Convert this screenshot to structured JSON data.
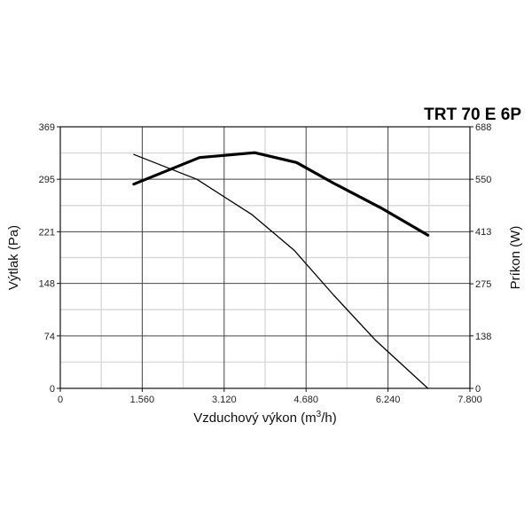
{
  "chart_data": {
    "type": "line",
    "title": "TRT 70 E 6P",
    "xlabel": "Vzduchový výkon (m³/h)",
    "xlabel_parts": {
      "pre": "Vzduchový výkon (m",
      "sup": "3",
      "post": "/h)"
    },
    "ylabel_left": "Výtlak (Pa)",
    "ylabel_right": "Príkon (W)",
    "xlim": [
      0,
      7800
    ],
    "ylim_left": [
      0,
      369
    ],
    "ylim_right": [
      0,
      688
    ],
    "x_ticks": [
      0,
      1560,
      3120,
      4680,
      6240,
      7800
    ],
    "x_tick_labels": [
      "0",
      "1.560",
      "3.120",
      "4.680",
      "6.240",
      "7.800"
    ],
    "y_left_ticks": [
      0,
      74,
      148,
      221,
      295,
      369
    ],
    "y_left_tick_labels": [
      "0",
      "74",
      "148",
      "221",
      "295",
      "369"
    ],
    "y_right_ticks": [
      0,
      138,
      275,
      413,
      550,
      688
    ],
    "y_right_tick_labels": [
      "0",
      "138",
      "275",
      "413",
      "550",
      "688"
    ],
    "grid": true,
    "series": [
      {
        "axis": "left",
        "style": "thin",
        "x": [
          1400,
          2600,
          3650,
          4450,
          5200,
          6000,
          7000
        ],
        "y": [
          330,
          295,
          245,
          195,
          132,
          68,
          0
        ]
      },
      {
        "axis": "right",
        "style": "thick",
        "x": [
          1400,
          2650,
          3700,
          4500,
          5200,
          6100,
          7000
        ],
        "y": [
          537,
          607,
          620,
          594,
          540,
          475,
          403
        ]
      }
    ]
  }
}
